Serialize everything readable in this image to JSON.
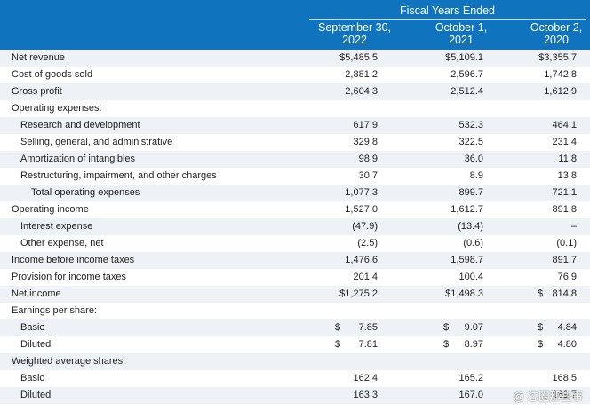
{
  "header": {
    "period_title": "Fiscal Years Ended",
    "columns": [
      {
        "line1": "September 30,",
        "line2": "2022"
      },
      {
        "line1": "October 1,",
        "line2": "2021"
      },
      {
        "line1": "October 2,",
        "line2": "2020"
      }
    ]
  },
  "rows": [
    {
      "label": "Net revenue",
      "indent": 0,
      "c1": {
        "cur": "",
        "num": "$5,485.5"
      },
      "c2": {
        "cur": "",
        "num": "$5,109.1"
      },
      "c3": {
        "cur": "",
        "num": "$3,355.7"
      }
    },
    {
      "label": "Cost of goods sold",
      "indent": 0,
      "c1": {
        "cur": "",
        "num": "2,881.2"
      },
      "c2": {
        "cur": "",
        "num": "2,596.7"
      },
      "c3": {
        "cur": "",
        "num": "1,742.8"
      }
    },
    {
      "label": "Gross profit",
      "indent": 0,
      "c1": {
        "cur": "",
        "num": "2,604.3"
      },
      "c2": {
        "cur": "",
        "num": "2,512.4"
      },
      "c3": {
        "cur": "",
        "num": "1,612.9"
      }
    },
    {
      "label": "Operating expenses:",
      "indent": 0,
      "c1": {
        "cur": "",
        "num": ""
      },
      "c2": {
        "cur": "",
        "num": ""
      },
      "c3": {
        "cur": "",
        "num": ""
      }
    },
    {
      "label": "Research and development",
      "indent": 1,
      "c1": {
        "cur": "",
        "num": "617.9"
      },
      "c2": {
        "cur": "",
        "num": "532.3"
      },
      "c3": {
        "cur": "",
        "num": "464.1"
      }
    },
    {
      "label": "Selling, general, and administrative",
      "indent": 1,
      "c1": {
        "cur": "",
        "num": "329.8"
      },
      "c2": {
        "cur": "",
        "num": "322.5"
      },
      "c3": {
        "cur": "",
        "num": "231.4"
      }
    },
    {
      "label": "Amortization of intangibles",
      "indent": 1,
      "c1": {
        "cur": "",
        "num": "98.9"
      },
      "c2": {
        "cur": "",
        "num": "36.0"
      },
      "c3": {
        "cur": "",
        "num": "11.8"
      }
    },
    {
      "label": "Restructuring, impairment, and other charges",
      "indent": 1,
      "c1": {
        "cur": "",
        "num": "30.7"
      },
      "c2": {
        "cur": "",
        "num": "8.9"
      },
      "c3": {
        "cur": "",
        "num": "13.8"
      }
    },
    {
      "label": "Total operating expenses",
      "indent": 2,
      "c1": {
        "cur": "",
        "num": "1,077.3"
      },
      "c2": {
        "cur": "",
        "num": "899.7"
      },
      "c3": {
        "cur": "",
        "num": "721.1"
      }
    },
    {
      "label": "Operating income",
      "indent": 0,
      "c1": {
        "cur": "",
        "num": "1,527.0"
      },
      "c2": {
        "cur": "",
        "num": "1,612.7"
      },
      "c3": {
        "cur": "",
        "num": "891.8"
      }
    },
    {
      "label": "Interest expense",
      "indent": 1,
      "c1": {
        "cur": "",
        "num": "(47.9)"
      },
      "c2": {
        "cur": "",
        "num": "(13.4)"
      },
      "c3": {
        "cur": "",
        "num": "–"
      }
    },
    {
      "label": "Other expense, net",
      "indent": 1,
      "c1": {
        "cur": "",
        "num": "(2.5)"
      },
      "c2": {
        "cur": "",
        "num": "(0.6)"
      },
      "c3": {
        "cur": "",
        "num": "(0.1)"
      }
    },
    {
      "label": "Income before income taxes",
      "indent": 0,
      "c1": {
        "cur": "",
        "num": "1,476.6"
      },
      "c2": {
        "cur": "",
        "num": "1,598.7"
      },
      "c3": {
        "cur": "",
        "num": "891.7"
      }
    },
    {
      "label": "Provision for income taxes",
      "indent": 0,
      "c1": {
        "cur": "",
        "num": "201.4"
      },
      "c2": {
        "cur": "",
        "num": "100.4"
      },
      "c3": {
        "cur": "",
        "num": "76.9"
      }
    },
    {
      "label": "Net income",
      "indent": 0,
      "c1": {
        "cur": "",
        "num": "$1,275.2"
      },
      "c2": {
        "cur": "",
        "num": "$1,498.3"
      },
      "c3": {
        "cur": "$",
        "num": "814.8"
      }
    },
    {
      "label": "Earnings per share:",
      "indent": 0,
      "c1": {
        "cur": "",
        "num": ""
      },
      "c2": {
        "cur": "",
        "num": ""
      },
      "c3": {
        "cur": "",
        "num": ""
      }
    },
    {
      "label": "Basic",
      "indent": 1,
      "c1": {
        "cur": "$",
        "num": "7.85"
      },
      "c2": {
        "cur": "$",
        "num": "9.07"
      },
      "c3": {
        "cur": "$",
        "num": "4.84"
      }
    },
    {
      "label": "Diluted",
      "indent": 1,
      "c1": {
        "cur": "$",
        "num": "7.81"
      },
      "c2": {
        "cur": "$",
        "num": "8.97"
      },
      "c3": {
        "cur": "$",
        "num": "4.80"
      }
    },
    {
      "label": "Weighted average shares:",
      "indent": 0,
      "c1": {
        "cur": "",
        "num": ""
      },
      "c2": {
        "cur": "",
        "num": ""
      },
      "c3": {
        "cur": "",
        "num": ""
      }
    },
    {
      "label": "Basic",
      "indent": 1,
      "c1": {
        "cur": "",
        "num": "162.4"
      },
      "c2": {
        "cur": "",
        "num": "165.2"
      },
      "c3": {
        "cur": "",
        "num": "168.5"
      }
    },
    {
      "label": "Diluted",
      "indent": 1,
      "c1": {
        "cur": "",
        "num": "163.3"
      },
      "c2": {
        "cur": "",
        "num": "167.0"
      },
      "c3": {
        "cur": "",
        "num": "169.7"
      }
    }
  ],
  "watermark": "@ 芯圈那些事"
}
